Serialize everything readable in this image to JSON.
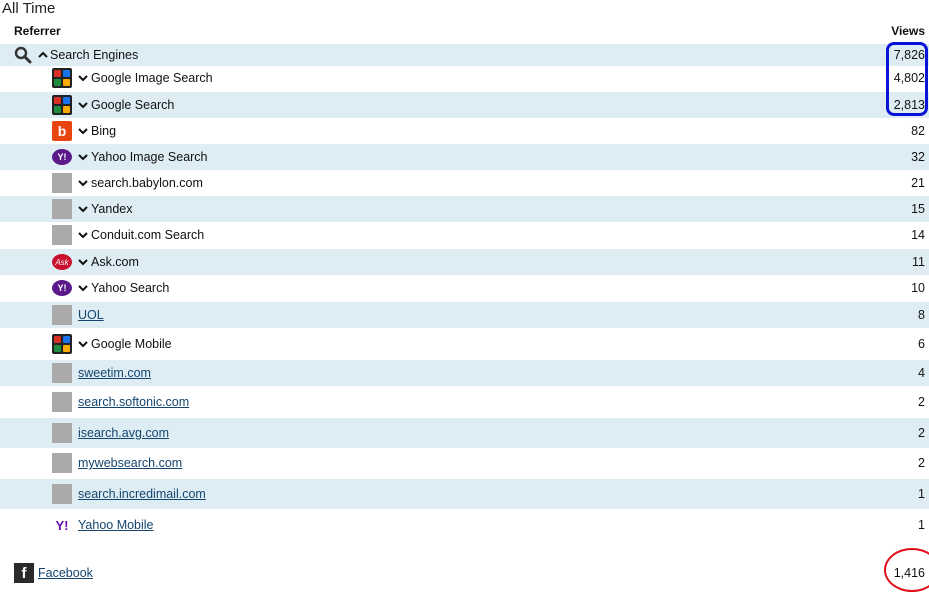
{
  "title": "All Time",
  "headers": {
    "referrer": "Referrer",
    "views": "Views"
  },
  "group": {
    "label": "Search Engines",
    "count": "7,826",
    "icon": "search-icon"
  },
  "rows": [
    {
      "label": "Google Image Search",
      "count": "4,802",
      "icon": "google-logo-icon",
      "expandable": true,
      "link": false
    },
    {
      "label": "Google Search",
      "count": "2,813",
      "icon": "google-logo-icon",
      "expandable": true,
      "link": false
    },
    {
      "label": "Bing",
      "count": "82",
      "icon": "bing-logo-icon",
      "expandable": true,
      "link": false
    },
    {
      "label": "Yahoo Image Search",
      "count": "32",
      "icon": "yahoo-logo-icon",
      "expandable": true,
      "link": false
    },
    {
      "label": "search.babylon.com",
      "count": "21",
      "icon": "placeholder-icon",
      "expandable": true,
      "link": false
    },
    {
      "label": "Yandex",
      "count": "15",
      "icon": "placeholder-icon",
      "expandable": true,
      "link": false
    },
    {
      "label": "Conduit.com Search",
      "count": "14",
      "icon": "placeholder-icon",
      "expandable": true,
      "link": false
    },
    {
      "label": "Ask.com",
      "count": "11",
      "icon": "ask-logo-icon",
      "expandable": true,
      "link": false
    },
    {
      "label": "Yahoo Search",
      "count": "10",
      "icon": "yahoo-logo-icon",
      "expandable": true,
      "link": false
    },
    {
      "label": "UOL",
      "count": "8",
      "icon": "placeholder-icon",
      "expandable": false,
      "link": true
    },
    {
      "label": "Google Mobile",
      "count": "6",
      "icon": "google-logo-icon",
      "expandable": true,
      "link": false
    },
    {
      "label": "sweetim.com",
      "count": "4",
      "icon": "placeholder-icon",
      "expandable": false,
      "link": true
    },
    {
      "label": "search.softonic.com",
      "count": "2",
      "icon": "placeholder-icon",
      "expandable": false,
      "link": true
    },
    {
      "label": "isearch.avg.com",
      "count": "2",
      "icon": "placeholder-icon",
      "expandable": false,
      "link": true
    },
    {
      "label": "mywebsearch.com",
      "count": "2",
      "icon": "placeholder-icon",
      "expandable": false,
      "link": true
    },
    {
      "label": "search.incredimail.com",
      "count": "1",
      "icon": "placeholder-icon",
      "expandable": false,
      "link": true
    },
    {
      "label": "Yahoo Mobile",
      "count": "1",
      "icon": "yahoo-mobile-logo-icon",
      "expandable": false,
      "link": true
    }
  ],
  "facebook": {
    "label": "Facebook",
    "count": "1,416",
    "icon": "facebook-logo-icon"
  },
  "annotations": {
    "blue_box_color": "#0a14d6",
    "red_circle_color": "#e0101a"
  },
  "colors": {
    "row_shade": "#deedf4",
    "link": "#14456e"
  }
}
